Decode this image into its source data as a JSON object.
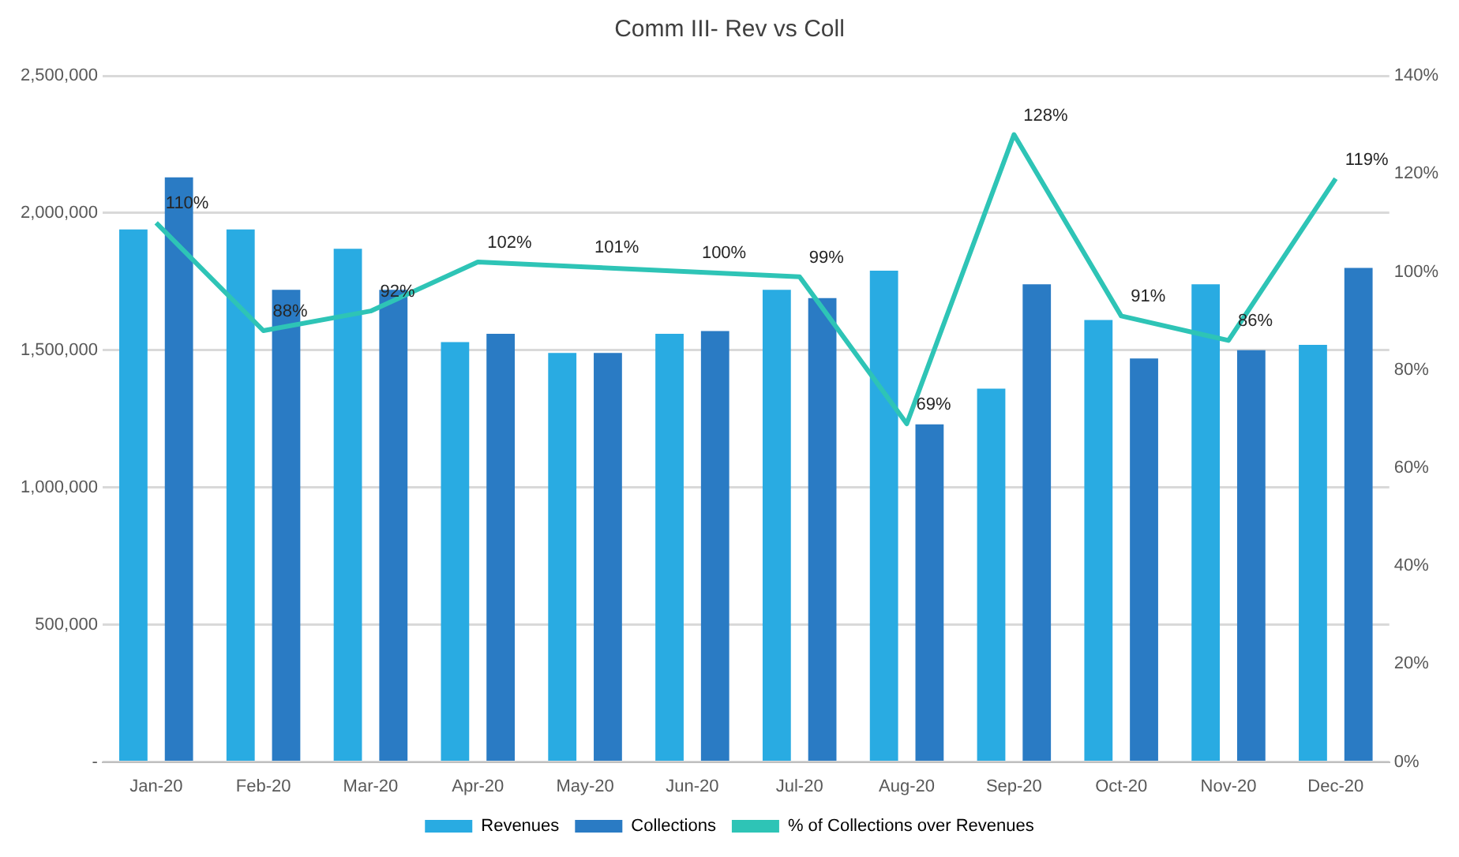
{
  "chart_data": {
    "type": "bar",
    "title": "Comm III- Rev vs Coll",
    "categories": [
      "Jan-20",
      "Feb-20",
      "Mar-20",
      "Apr-20",
      "May-20",
      "Jun-20",
      "Jul-20",
      "Aug-20",
      "Sep-20",
      "Oct-20",
      "Nov-20",
      "Dec-20"
    ],
    "series": [
      {
        "name": "Revenues",
        "color": "#29abe2",
        "values": [
          1940000,
          1940000,
          1870000,
          1530000,
          1490000,
          1560000,
          1720000,
          1790000,
          1360000,
          1610000,
          1740000,
          1520000
        ]
      },
      {
        "name": "Collections",
        "color": "#2a7bc4",
        "values": [
          2130000,
          1720000,
          1720000,
          1560000,
          1490000,
          1570000,
          1690000,
          1230000,
          1740000,
          1470000,
          1500000,
          1800000
        ]
      },
      {
        "name": "% of Collections over Revenues",
        "type": "line",
        "axis": "y2",
        "color": "#2ec4b6",
        "marker": "none",
        "values": [
          110,
          88,
          92,
          102,
          101,
          100,
          99,
          69,
          128,
          91,
          86,
          119
        ],
        "value_labels": [
          "110%",
          "88%",
          "92%",
          "102%",
          "101%",
          "100%",
          "99%",
          "69%",
          "128%",
          "91%",
          "86%",
          "119%"
        ]
      }
    ],
    "ylim": [
      0,
      2500000
    ],
    "yticks": [
      {
        "value": 0,
        "label": "-"
      },
      {
        "value": 500000,
        "label": "500,000"
      },
      {
        "value": 1000000,
        "label": "1,000,000"
      },
      {
        "value": 1500000,
        "label": "1,500,000"
      },
      {
        "value": 2000000,
        "label": "2,000,000"
      },
      {
        "value": 2500000,
        "label": "2,500,000"
      }
    ],
    "y2lim": [
      0,
      140
    ],
    "y2ticks": [
      {
        "value": 0,
        "label": "0%"
      },
      {
        "value": 20,
        "label": "20%"
      },
      {
        "value": 40,
        "label": "40%"
      },
      {
        "value": 60,
        "label": "60%"
      },
      {
        "value": 80,
        "label": "80%"
      },
      {
        "value": 100,
        "label": "100%"
      },
      {
        "value": 120,
        "label": "120%"
      },
      {
        "value": 140,
        "label": "140%"
      }
    ],
    "grid": "y",
    "legend": "bottom"
  }
}
